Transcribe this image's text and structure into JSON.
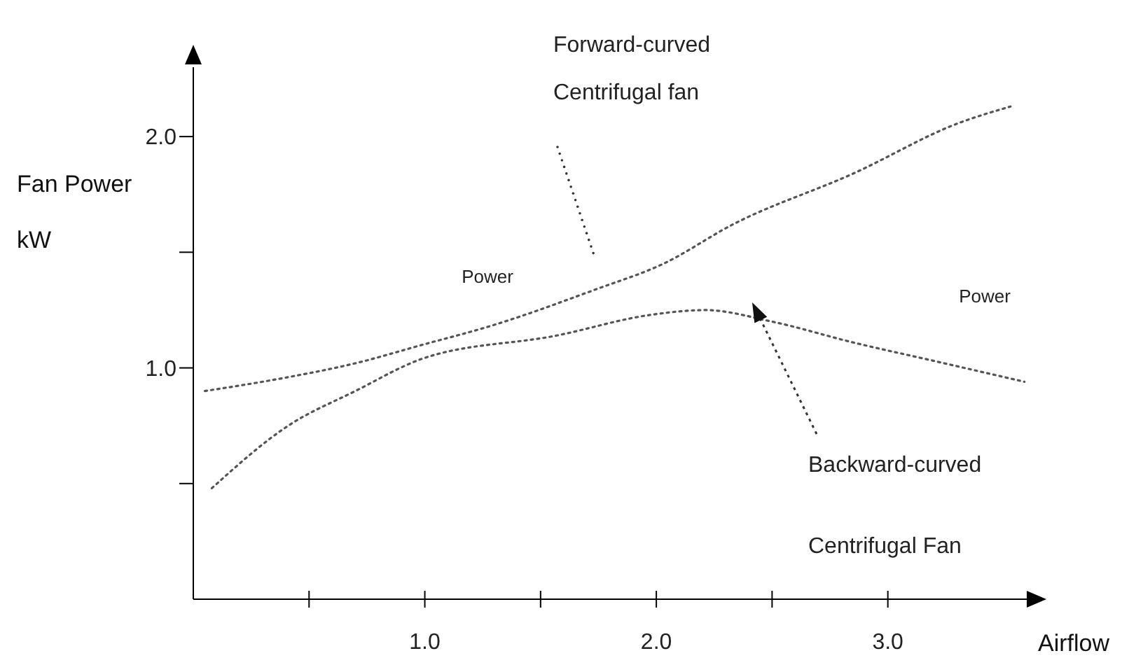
{
  "chart_data": {
    "type": "line",
    "xlabel": "Airflow",
    "ylabel": "Fan Power kW",
    "xlim": [
      0,
      3.6
    ],
    "ylim": [
      0,
      2.3
    ],
    "xticks": [
      {
        "value": 0.5,
        "label": null
      },
      {
        "value": 1,
        "label": "1.0"
      },
      {
        "value": 1.5,
        "label": null
      },
      {
        "value": 2,
        "label": "2.0"
      },
      {
        "value": 2.5,
        "label": null
      },
      {
        "value": 3,
        "label": "3.0"
      }
    ],
    "yticks": [
      {
        "value": 0.5,
        "label": null
      },
      {
        "value": 1,
        "label": "1.0"
      },
      {
        "value": 1.5,
        "label": null
      },
      {
        "value": 2,
        "label": "2.0"
      }
    ],
    "series": [
      {
        "color": "#555555",
        "x": [
          0.05,
          0.41,
          0.7,
          0.99,
          1.28,
          1.74,
          2.03,
          2.33,
          2.85,
          3.31,
          3.53
        ],
        "values": [
          0.9,
          0.96,
          1.02,
          1.1,
          1.18,
          1.34,
          1.45,
          1.62,
          1.84,
          2.06,
          2.13
        ]
      },
      {
        "color": "#555555",
        "x": [
          0.08,
          0.41,
          0.7,
          0.99,
          1.57,
          1.98,
          2.21,
          2.5,
          2.85,
          3.2,
          3.59
        ],
        "values": [
          0.48,
          0.75,
          0.9,
          1.04,
          1.14,
          1.23,
          1.25,
          1.2,
          1.11,
          1.03,
          0.94
        ]
      }
    ],
    "annotations": [
      "Forward-curved Centrifugal fan",
      "Power",
      "Backward-curved Centrifugal Fan",
      "Power"
    ],
    "line_style": "dotted",
    "marker": "none",
    "grid": false
  }
}
